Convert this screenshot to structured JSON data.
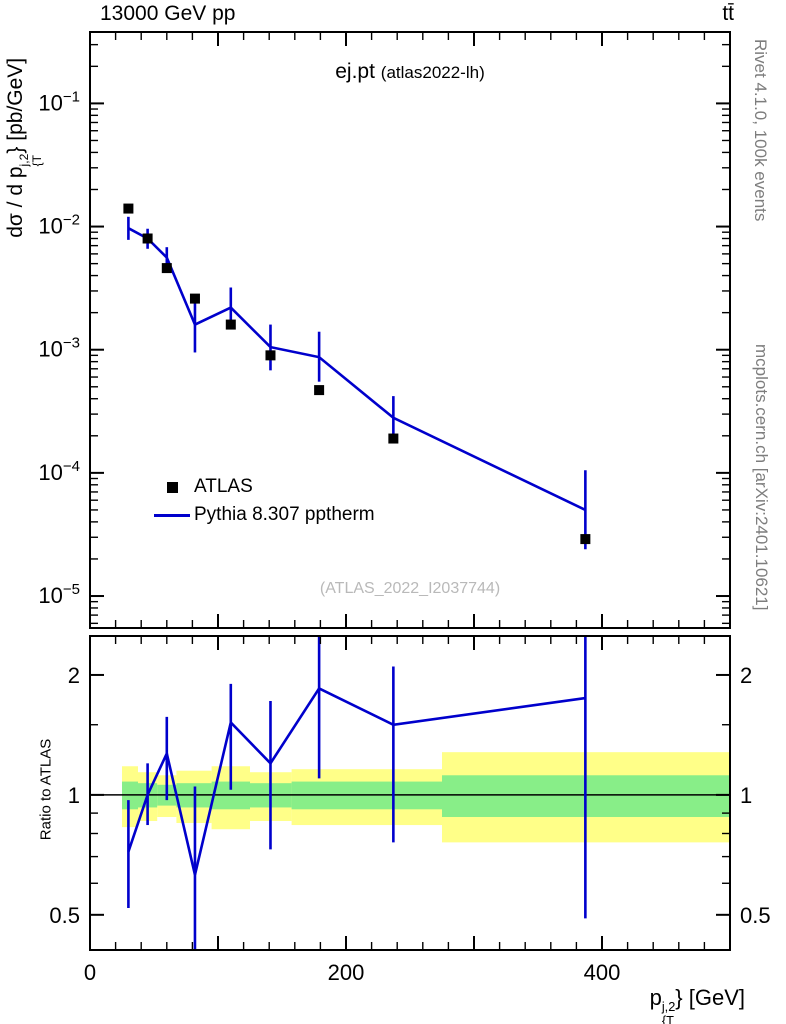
{
  "header": {
    "left": "13000 GeV pp",
    "right": "tt̄"
  },
  "panel_title": {
    "main": "ej.pt",
    "sub": "(atlas2022-lh)"
  },
  "watermark": "(ATLAS_2022_I2037744)",
  "credits": {
    "top": "Rivet 4.1.0,  100k events",
    "bottom": "mcplots.cern.ch [arXiv:2401.10621]"
  },
  "axes": {
    "y_main_label": {
      "prefix": "dσ / d p",
      "sup": "j,2",
      "sub": "{T",
      "close": "}",
      "suffix": " [pb/GeV]"
    },
    "x_label": {
      "prefix": "p",
      "sup": "j,2",
      "sub": "{T",
      "close": "}",
      "suffix": " [GeV]"
    },
    "ratio_label": "Ratio to ATLAS"
  },
  "legend": [
    {
      "label": "ATLAS",
      "marker": "square",
      "color": "#000000"
    },
    {
      "label": "Pythia 8.307 pptherm",
      "marker": "line",
      "color": "#0000cc"
    }
  ],
  "colors": {
    "line": "#0000cc",
    "data": "#000000",
    "band_outer": "#ffff88",
    "band_inner": "#88ee88"
  },
  "chart_data": {
    "type": "line",
    "title": "ej.pt (atlas2022-lh)",
    "xlabel": "p_T^{j,2} [GeV]",
    "ylabel": "dsigma / d p_T^{j,2} [pb/GeV]",
    "ratio_ylabel": "Ratio to ATLAS",
    "xlim": [
      0,
      500
    ],
    "x_major_step": 100,
    "x_minor_step": 20,
    "x_labeled_ticks": [
      0,
      200,
      400
    ],
    "main": {
      "ylog": true,
      "ylim": [
        5.5e-06,
        0.38
      ],
      "y_tick_exponents": [
        -5,
        -4,
        -3,
        -2,
        -1
      ],
      "x": [
        30,
        45,
        60,
        82,
        110,
        141,
        179,
        237,
        387
      ],
      "series": [
        {
          "name": "ATLAS",
          "type": "scatter",
          "color": "#000000",
          "y": [
            0.014,
            0.008,
            0.0046,
            0.0026,
            0.0016,
            0.0009,
            0.00047,
            0.00019,
            2.9e-05
          ]
        },
        {
          "name": "Pythia 8.307 pptherm",
          "type": "line",
          "color": "#0000cc",
          "y": [
            0.0097,
            0.008,
            0.0056,
            0.0016,
            0.0022,
            0.00105,
            0.00087,
            0.00028,
            5e-05
          ],
          "yerr_lo": [
            0.0078,
            0.0066,
            0.0046,
            0.00095,
            0.0015,
            0.00068,
            0.00055,
            0.00019,
            2.4e-05
          ],
          "yerr_hi": [
            0.012,
            0.0096,
            0.0068,
            0.0026,
            0.0032,
            0.0016,
            0.0014,
            0.00042,
            0.000105
          ]
        }
      ]
    },
    "ratio": {
      "ylog": true,
      "ylim": [
        0.408,
        2.505
      ],
      "ticks": [
        0.5,
        1,
        2
      ],
      "minor_ticks": [
        0.6,
        0.7,
        0.8,
        0.9,
        1.5
      ],
      "x": [
        30,
        45,
        60,
        82,
        110,
        141,
        179,
        237,
        387
      ],
      "y": [
        0.72,
        1.0,
        1.27,
        0.63,
        1.52,
        1.2,
        1.85,
        1.5,
        1.75
      ],
      "err_lo": [
        0.52,
        0.84,
        0.97,
        0.3,
        1.03,
        0.73,
        1.1,
        0.76,
        0.49
      ],
      "err_hi": [
        0.97,
        1.2,
        1.57,
        1.05,
        1.9,
        1.72,
        2.65,
        2.1,
        2.65
      ],
      "bands": {
        "edges": [
          25,
          37.5,
          52.5,
          67.5,
          95,
          125,
          157.5,
          200,
          275,
          500
        ],
        "outer_lo": [
          0.83,
          0.86,
          0.88,
          0.85,
          0.82,
          0.86,
          0.84,
          0.84,
          0.76
        ],
        "outer_hi": [
          1.18,
          1.14,
          1.12,
          1.15,
          1.18,
          1.14,
          1.16,
          1.16,
          1.28
        ],
        "inner_lo": [
          0.92,
          0.93,
          0.94,
          0.93,
          0.92,
          0.93,
          0.92,
          0.92,
          0.88
        ],
        "inner_hi": [
          1.08,
          1.07,
          1.06,
          1.07,
          1.08,
          1.07,
          1.08,
          1.08,
          1.12
        ]
      }
    }
  }
}
